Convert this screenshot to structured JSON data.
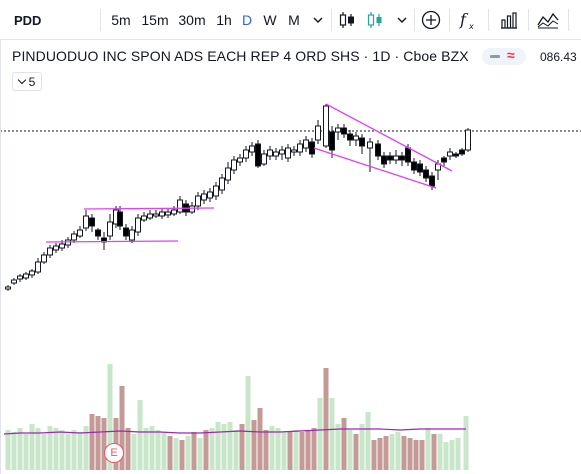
{
  "toolbar": {
    "symbol": "PDD",
    "timeframes": [
      "5m",
      "15m",
      "30m",
      "1h",
      "D",
      "W",
      "M"
    ],
    "active_timeframe": "D",
    "icons": [
      "candles-icon",
      "candle-style-icon",
      "chevron-down-icon",
      "add-compare-icon",
      "indicators-icon",
      "financials-icon",
      "alerts-wave-icon"
    ]
  },
  "legend": {
    "title": "PINDUODUO INC SPON ADS EACH REP 4 ORD SHS · 1D · Cboe BZX",
    "last_value": "086.43"
  },
  "indicators_toggle": {
    "count": "5"
  },
  "earnings_marker": {
    "label": "E"
  },
  "colors": {
    "up_candle": "#ffffff",
    "down_candle": "#000000",
    "volume_up": "#c8e6c9",
    "volume_down": "#c49a97",
    "volume_ma": "#9c27b0",
    "trendline": "#e040fb",
    "last_price_line": "#131722"
  }
}
